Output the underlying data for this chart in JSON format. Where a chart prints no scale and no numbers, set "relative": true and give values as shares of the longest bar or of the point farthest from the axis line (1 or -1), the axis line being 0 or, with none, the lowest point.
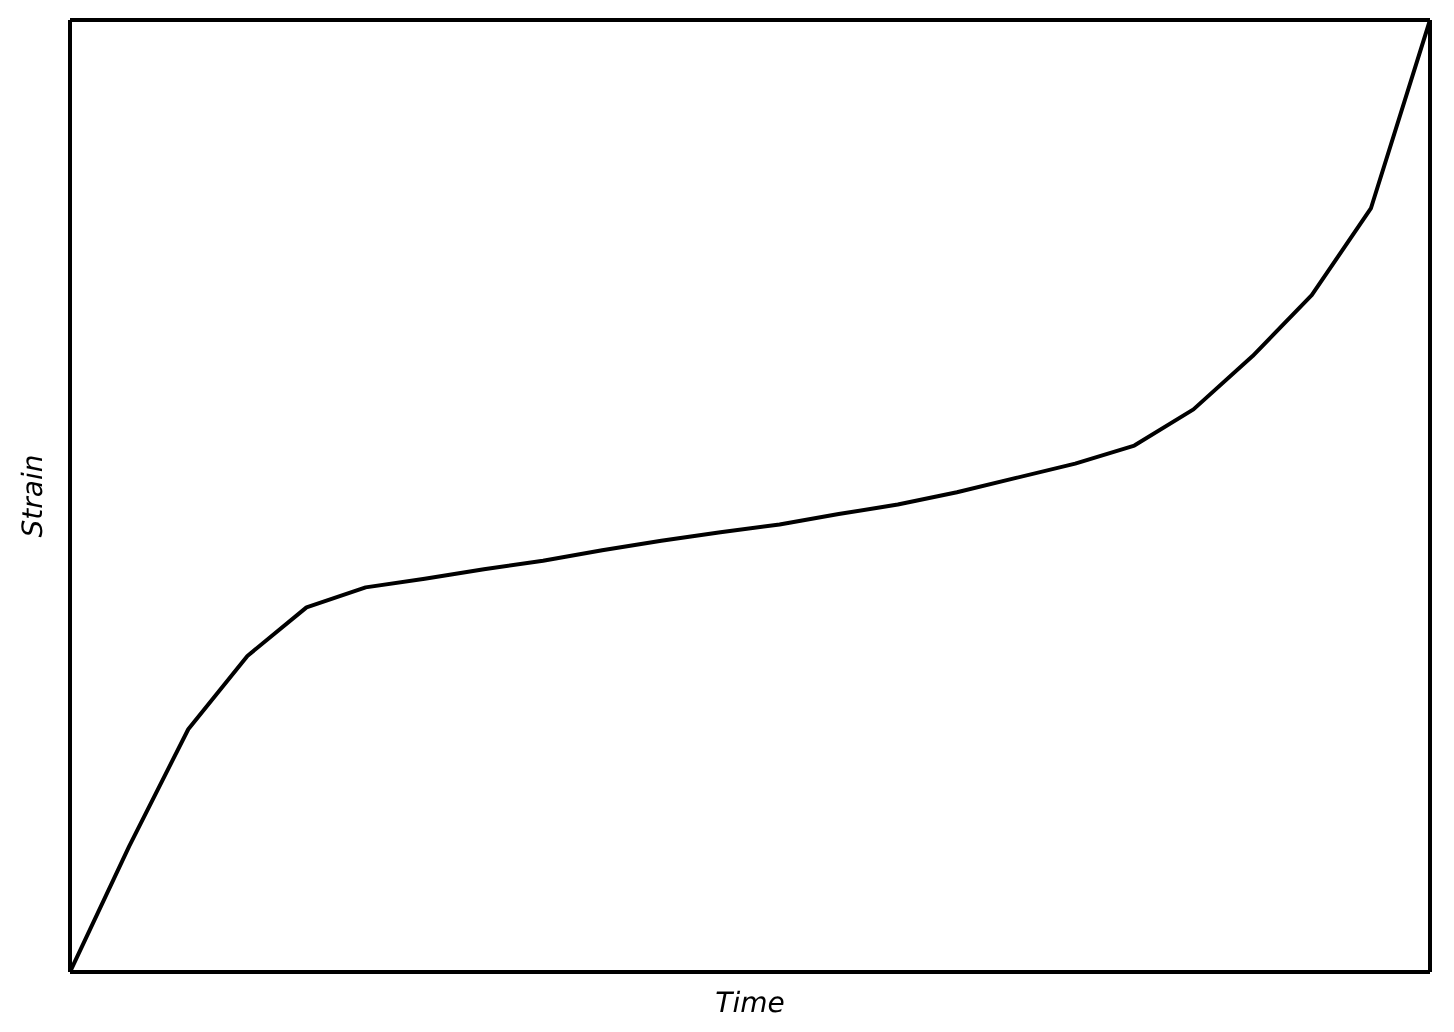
{
  "chart_data": {
    "type": "line",
    "xlabel": "Time",
    "ylabel": "Strain",
    "relative": true,
    "color": "#000000",
    "categories": [
      null,
      null,
      null,
      null,
      null,
      null,
      null,
      null,
      null,
      null,
      null,
      null,
      null,
      null,
      null,
      null,
      null,
      null,
      null,
      null,
      null,
      null,
      null,
      null
    ],
    "values": [
      0,
      0.132,
      0.255,
      0.332,
      0.383,
      0.404,
      0.413,
      0.423,
      0.432,
      0.443,
      0.453,
      0.462,
      0.47,
      0.481,
      0.491,
      0.504,
      0.519,
      0.534,
      0.553,
      0.591,
      0.647,
      0.711,
      0.802,
      1
    ]
  }
}
